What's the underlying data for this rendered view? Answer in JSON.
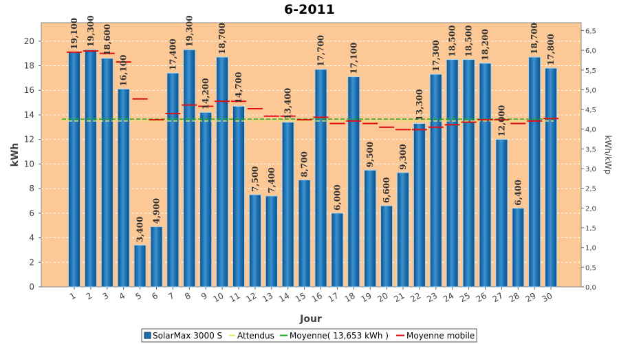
{
  "chart_data": {
    "type": "bar",
    "title": "6-2011",
    "xlabel": "Jour",
    "ylabel": "kWh",
    "y2label": "kWh/kWp",
    "ylim": [
      0,
      21.5
    ],
    "y2lim": [
      0,
      6.7
    ],
    "yticks": [
      0,
      2,
      4,
      6,
      8,
      10,
      12,
      14,
      16,
      18,
      20
    ],
    "y2ticks": [
      "0,0",
      "0,5",
      "1,0",
      "1,5",
      "2,0",
      "2,5",
      "3,0",
      "3,5",
      "4,0",
      "4,5",
      "5,0",
      "5,5",
      "6,0",
      "6,5"
    ],
    "categories": [
      "1",
      "2",
      "3",
      "4",
      "5",
      "6",
      "7",
      "8",
      "9",
      "10",
      "11",
      "12",
      "13",
      "14",
      "15",
      "16",
      "17",
      "18",
      "19",
      "20",
      "21",
      "22",
      "23",
      "24",
      "25",
      "26",
      "27",
      "28",
      "29",
      "30"
    ],
    "series": [
      {
        "name": "SolarMax 3000 S",
        "type": "bar",
        "color": "#1f6fae",
        "values": [
          19.1,
          19.3,
          18.6,
          16.1,
          3.4,
          4.9,
          17.4,
          19.3,
          14.2,
          18.7,
          14.7,
          7.5,
          7.4,
          13.4,
          8.7,
          17.7,
          6.0,
          17.1,
          9.5,
          6.6,
          9.3,
          13.3,
          17.3,
          18.5,
          18.5,
          18.2,
          12.0,
          6.4,
          18.7,
          17.8
        ],
        "labels": [
          "19,100",
          "19,300",
          "18,600",
          "16,100",
          "3,400",
          "4,900",
          "17,400",
          "19,300",
          "14,200",
          "18,700",
          "14,700",
          "7,500",
          "7,400",
          "13,400",
          "8,700",
          "17,700",
          "6,000",
          "17,100",
          "9,500",
          "6,600",
          "9,300",
          "13,300",
          "17,300",
          "18,500",
          "18,500",
          "18,200",
          "12,000",
          "6,400",
          "18,700",
          "17,800"
        ]
      },
      {
        "name": "Attendus",
        "type": "line",
        "color": "#e8e86a",
        "values": [
          13.5,
          13.5,
          13.5,
          13.5,
          13.5,
          13.5,
          13.5,
          13.5,
          13.5,
          13.5,
          13.5,
          13.5,
          13.5,
          13.5,
          13.5,
          13.5,
          13.5,
          13.5,
          13.5,
          13.5,
          13.5,
          13.5,
          13.5,
          13.5,
          13.5,
          13.5,
          13.5,
          13.5,
          13.5,
          13.5
        ]
      },
      {
        "name": "Moyenne( 13,653 kWh )",
        "type": "line",
        "color": "#22aa22",
        "values": [
          13.653,
          13.653,
          13.653,
          13.653,
          13.653,
          13.653,
          13.653,
          13.653,
          13.653,
          13.653,
          13.653,
          13.653,
          13.653,
          13.653,
          13.653,
          13.653,
          13.653,
          13.653,
          13.653,
          13.653,
          13.653,
          13.653,
          13.653,
          13.653,
          13.653,
          13.653,
          13.653,
          13.653,
          13.653,
          13.653
        ]
      },
      {
        "name": "Moyenne mobile",
        "type": "step",
        "color": "#e01010",
        "values": [
          19.1,
          19.2,
          19.0,
          18.3,
          15.3,
          13.6,
          14.1,
          14.8,
          14.7,
          15.1,
          15.1,
          14.5,
          13.9,
          13.9,
          13.6,
          13.8,
          13.3,
          13.5,
          13.3,
          13.0,
          12.8,
          12.8,
          13.0,
          13.2,
          13.4,
          13.6,
          13.6,
          13.3,
          13.5,
          13.7
        ]
      }
    ],
    "legend_position": "bottom",
    "grid": true,
    "colors": {
      "plot_background": "#fcc896",
      "bar_fill": "#1f6fae",
      "bar_highlight": "#5fb0e6",
      "grid": "#ffffff"
    }
  }
}
